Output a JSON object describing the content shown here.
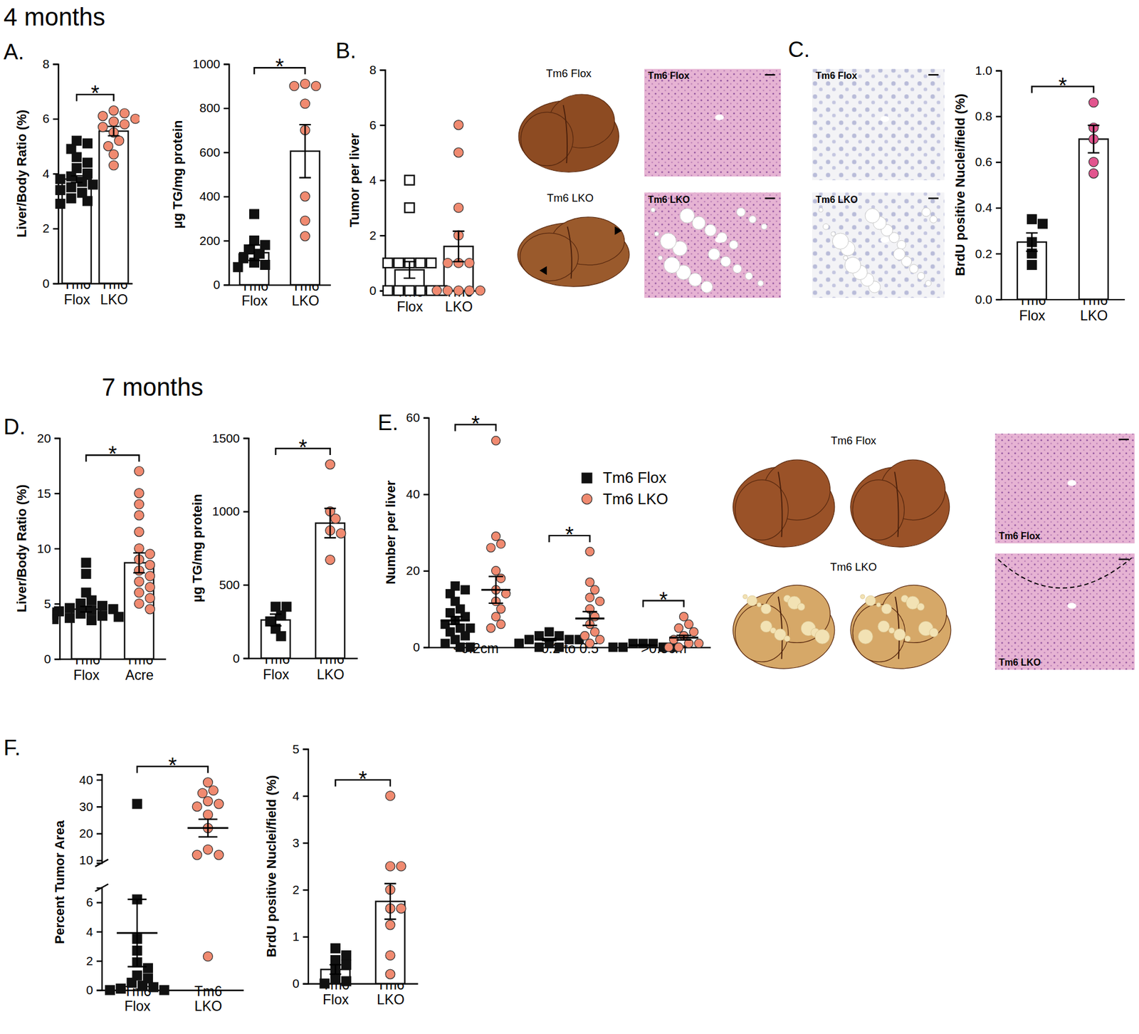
{
  "headings": [
    "4 months",
    "7 months"
  ],
  "panel_letters": [
    "A.",
    "B.",
    "C.",
    "D.",
    "E.",
    "F."
  ],
  "images": {
    "B": {
      "photos": [
        "Tm6 Flox",
        "Tm6 LKO"
      ],
      "histology": [
        "Tm6 Flox",
        "Tm6 LKO"
      ]
    },
    "C": {
      "histology": [
        "Tm6 Flox",
        "Tm6 LKO"
      ]
    },
    "E": {
      "photos": [
        "Tm6 Flox",
        "Tm6 LKO"
      ],
      "histology": [
        "Tm6 Flox",
        "Tm6 LKO"
      ]
    }
  },
  "chart_data": [
    {
      "type": "bar",
      "ylabel": "Liver/Body Ratio (%)",
      "categories": [
        "Tm6\nFlox",
        "Tm6\nLKO"
      ],
      "values": [
        3.8,
        5.55
      ],
      "errors": [
        0.12,
        0.17
      ],
      "points": [
        [
          5.2,
          5.1,
          4.9,
          4.6,
          4.4,
          4.2,
          4.0,
          3.9,
          3.8,
          3.7,
          3.6,
          3.5,
          3.4,
          3.3,
          3.1,
          3.0,
          2.9
        ],
        [
          6.3,
          6.2,
          6.1,
          6.0,
          5.9,
          5.8,
          5.7,
          5.5,
          5.2,
          5.0,
          4.7,
          4.3
        ]
      ],
      "colors": [
        "#ffffff",
        "#ffffff"
      ],
      "point_colors": [
        "#111111",
        "#f08a70"
      ],
      "markers": [
        "square",
        "circle"
      ],
      "ylim": [
        0,
        8
      ],
      "yticks": [
        0,
        2,
        4,
        6,
        8
      ],
      "annotations": [
        {
          "text": "*",
          "between": [
            0,
            1
          ]
        }
      ]
    },
    {
      "type": "bar",
      "ylabel": "µg TG/mg protein",
      "categories": [
        "Tm6\nFlox",
        "Tm6\nLKO"
      ],
      "values": [
        145,
        605
      ],
      "errors": [
        35,
        120
      ],
      "points": [
        [
          320,
          200,
          180,
          160,
          140,
          120,
          100,
          90,
          80
        ],
        [
          910,
          900,
          900,
          820,
          700,
          400,
          290,
          220
        ]
      ],
      "colors": [
        "#ffffff",
        "#ffffff"
      ],
      "point_colors": [
        "#111111",
        "#f08a70"
      ],
      "markers": [
        "square",
        "circle"
      ],
      "ylim": [
        0,
        1000
      ],
      "yticks": [
        0,
        200,
        400,
        600,
        800,
        1000
      ],
      "annotations": [
        {
          "text": "*",
          "between": [
            0,
            1
          ]
        }
      ]
    },
    {
      "type": "bar",
      "ylabel": "Tumor per liver",
      "categories": [
        "Tm6\nFlox",
        "Tm6\nLKO"
      ],
      "values": [
        0.75,
        1.6
      ],
      "errors": [
        0.3,
        0.55
      ],
      "points": [
        [
          4,
          3,
          1,
          1,
          1,
          1,
          1,
          0,
          0,
          0,
          0,
          0,
          0
        ],
        [
          6,
          5,
          3,
          2,
          1,
          1,
          1,
          0,
          0,
          0,
          0,
          0
        ]
      ],
      "colors": [
        "#ffffff",
        "#ffffff"
      ],
      "point_colors": [
        "#111111",
        "#f08a70"
      ],
      "markers": [
        "square-open",
        "circle"
      ],
      "ylim": [
        0,
        8
      ],
      "yticks": [
        0,
        2,
        4,
        6,
        8
      ]
    },
    {
      "type": "bar",
      "ylabel": "BrdU positive Nuclei/field (%)",
      "categories": [
        "Tm6\nFlox",
        "Tm6\nLKO"
      ],
      "values": [
        0.25,
        0.7
      ],
      "errors": [
        0.04,
        0.06
      ],
      "points": [
        [
          0.35,
          0.33,
          0.25,
          0.2,
          0.15
        ],
        [
          0.86,
          0.75,
          0.7,
          0.6,
          0.55
        ]
      ],
      "colors": [
        "#ffffff",
        "#ffffff"
      ],
      "point_colors": [
        "#111111",
        "#e2558e"
      ],
      "markers": [
        "square",
        "circle"
      ],
      "ylim": [
        0,
        1
      ],
      "yticks": [
        {
          "value": 0,
          "label": "0.0"
        },
        0.2,
        0.4,
        0.6,
        0.8,
        {
          "value": 1,
          "label": "1.0"
        }
      ],
      "annotations": [
        {
          "text": "*",
          "between": [
            0,
            1
          ]
        }
      ]
    },
    {
      "type": "bar",
      "ylabel": "Liver/Body Ratio (%)",
      "categories": [
        "Tm6\nFlox",
        "Tm6\nAcre"
      ],
      "values": [
        4.5,
        8.7
      ],
      "errors": [
        0.25,
        0.9
      ],
      "points": [
        [
          8.7,
          7.7,
          6.0,
          5.3,
          5.0,
          4.8,
          4.6,
          4.5,
          4.4,
          4.3,
          4.2,
          4.1,
          4.0,
          3.9,
          3.8,
          3.7,
          3.6,
          3.5
        ],
        [
          17,
          15,
          14,
          13,
          11.5,
          10,
          9.5,
          9,
          8.5,
          8,
          7.5,
          7,
          6.5,
          6,
          5.5,
          5,
          4.5
        ]
      ],
      "colors": [
        "#ffffff",
        "#ffffff"
      ],
      "point_colors": [
        "#111111",
        "#f08a70"
      ],
      "markers": [
        "square",
        "circle"
      ],
      "ylim": [
        0,
        20
      ],
      "yticks": [
        0,
        5,
        10,
        15,
        20
      ],
      "annotations": [
        {
          "text": "*",
          "between": [
            0,
            1
          ]
        }
      ]
    },
    {
      "type": "bar",
      "ylabel": "µg TG/mg protein",
      "categories": [
        "Tm6\nFlox",
        "Tm6\nLKO"
      ],
      "values": [
        260,
        920
      ],
      "errors": [
        40,
        100
      ],
      "points": [
        [
          350,
          350,
          290,
          250,
          200,
          150
        ],
        [
          1320,
          1000,
          950,
          870,
          850,
          670
        ]
      ],
      "colors": [
        "#ffffff",
        "#ffffff"
      ],
      "point_colors": [
        "#111111",
        "#f08a70"
      ],
      "markers": [
        "square",
        "circle"
      ],
      "ylim": [
        0,
        1500
      ],
      "yticks": [
        0,
        500,
        1000,
        1500
      ],
      "annotations": [
        {
          "text": "*",
          "between": [
            0,
            1
          ]
        }
      ]
    },
    {
      "type": "scatter",
      "ylabel": "Number per liver",
      "categories": [
        "<0.2cm",
        "0.2 to 0.5",
        ">0.5cm"
      ],
      "legend": "top-right",
      "series": [
        {
          "name": "Tm6 Flox",
          "color": "#111111",
          "marker": "square",
          "values": [
            7,
            2,
            0.5
          ],
          "errors": [
            1,
            0.3,
            0.15
          ],
          "points": [
            [
              16,
              15,
              14,
              12,
              10,
              9,
              8,
              7,
              6,
              5,
              5,
              4,
              3,
              2,
              1,
              0,
              0
            ],
            [
              4,
              3,
              3,
              2,
              2,
              2,
              1,
              1,
              1,
              0,
              0
            ],
            [
              1,
              1,
              1,
              0,
              0,
              0,
              0
            ]
          ]
        },
        {
          "name": "Tm6 LKO",
          "color": "#f08a70",
          "marker": "circle",
          "values": [
            15,
            7.5,
            2.5
          ],
          "errors": [
            3.5,
            1.8,
            0.6
          ],
          "points": [
            [
              54,
              29,
              27,
              26,
              20,
              18,
              15,
              14,
              12,
              10,
              8,
              6,
              5
            ],
            [
              25,
              17,
              15,
              13,
              12,
              10,
              8,
              6,
              4,
              3,
              2,
              1
            ],
            [
              8,
              6,
              5,
              4,
              3,
              2,
              1,
              1,
              0,
              0
            ]
          ]
        }
      ],
      "ylim": [
        0,
        60
      ],
      "yticks": [
        0,
        20,
        40,
        60
      ],
      "annotations": [
        {
          "text": "*",
          "group": 0
        },
        {
          "text": "*",
          "group": 1
        },
        {
          "text": "*",
          "group": 2
        }
      ]
    },
    {
      "type": "scatter",
      "ylabel": "Percent Tumor Area",
      "categories": [
        "Tm6\nFlox",
        "Tm6\nLKO"
      ],
      "values": [
        3.9,
        22
      ],
      "errors": [
        2.3,
        3.3
      ],
      "points": [
        [
          31,
          6.2,
          3.5,
          2.7,
          1.9,
          1.5,
          1.0,
          0.8,
          0.5,
          0.3,
          0.2,
          0.1,
          0,
          0
        ],
        [
          39,
          36,
          35,
          32,
          31,
          30,
          27,
          22,
          14,
          12,
          12,
          2.3
        ]
      ],
      "point_colors": [
        "#111111",
        "#f08a70"
      ],
      "markers": [
        "square",
        "circle"
      ],
      "ylim": [
        0,
        42
      ],
      "axis_break": [
        7,
        9
      ],
      "yticks": [
        0,
        2,
        4,
        6,
        10,
        20,
        30,
        40
      ],
      "annotations": [
        {
          "text": "*",
          "between": [
            0,
            1
          ]
        }
      ]
    },
    {
      "type": "bar",
      "ylabel": "BrdU positive Nuclei/field (%)",
      "categories": [
        "Tm6\nFlox",
        "Tm6\nLKO"
      ],
      "values": [
        0.3,
        1.75
      ],
      "errors": [
        0.1,
        0.38
      ],
      "points": [
        [
          0.75,
          0.6,
          0.5,
          0.4,
          0.3,
          0.1,
          0.05,
          0
        ],
        [
          4.0,
          2.5,
          2.5,
          2.0,
          1.6,
          1.6,
          1.25,
          0.6,
          0.2
        ]
      ],
      "colors": [
        "#ffffff",
        "#ffffff"
      ],
      "point_colors": [
        "#111111",
        "#f08a70"
      ],
      "markers": [
        "square",
        "circle"
      ],
      "ylim": [
        0,
        5
      ],
      "yticks": [
        0,
        1,
        2,
        3,
        4,
        5
      ],
      "annotations": [
        {
          "text": "*",
          "between": [
            0,
            1
          ]
        }
      ]
    }
  ]
}
